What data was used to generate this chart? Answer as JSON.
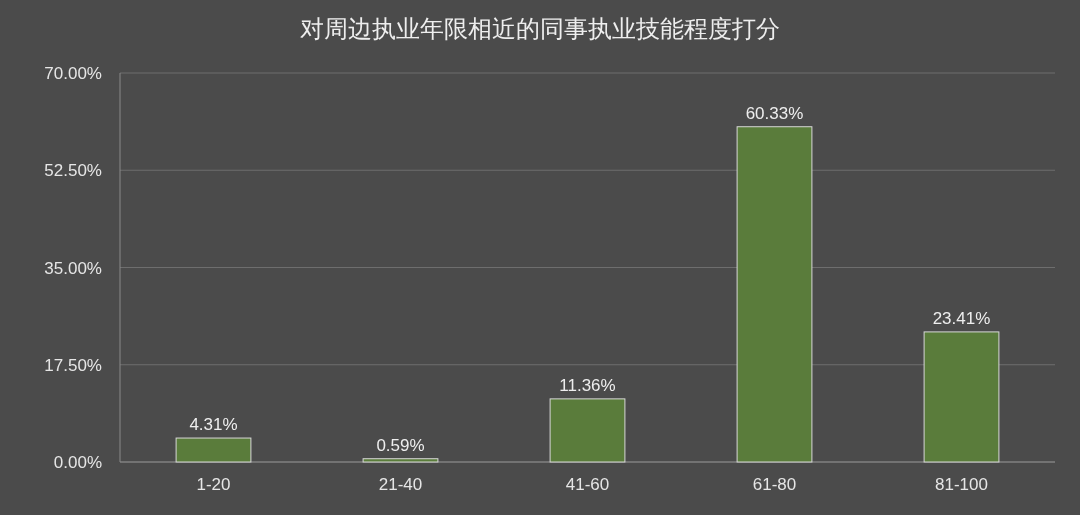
{
  "chart_data": {
    "type": "bar",
    "title": "对周边执业年限相近的同事执业技能程度打分",
    "categories": [
      "1-20",
      "21-40",
      "41-60",
      "61-80",
      "81-100"
    ],
    "values": [
      4.31,
      0.59,
      11.36,
      60.33,
      23.41
    ],
    "value_labels": [
      "4.31%",
      "0.59%",
      "11.36%",
      "60.33%",
      "23.41%"
    ],
    "color": "#5a7c3b",
    "ylim": [
      0,
      70
    ],
    "yticks": [
      {
        "value": 0,
        "label": "0.00%"
      },
      {
        "value": 17.5,
        "label": "17.50%"
      },
      {
        "value": 35,
        "label": "35.00%"
      },
      {
        "value": 52.5,
        "label": "52.50%"
      },
      {
        "value": 70,
        "label": "70.00%"
      }
    ],
    "grid": "y"
  }
}
